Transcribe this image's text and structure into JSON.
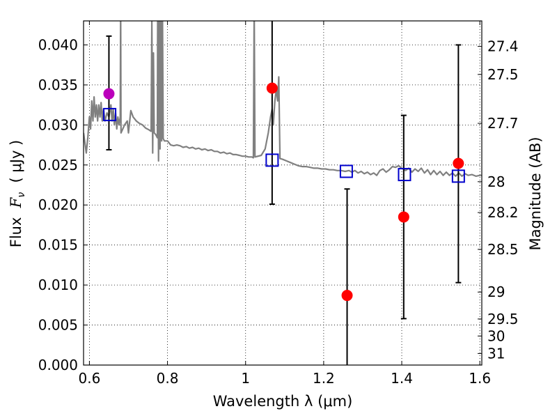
{
  "chart_data": {
    "type": "scatter",
    "xlabel": "Wavelength  λ (μm)",
    "ylabel_parts": [
      "Flux  ",
      "F",
      "ν",
      "  ( μJy )"
    ],
    "y2label": "Magnitude (AB)",
    "xlim": [
      0.585,
      1.605
    ],
    "ylim": [
      0.0,
      0.043
    ],
    "grid": true,
    "x_ticks": [
      {
        "value": 0.6,
        "label": "0.6"
      },
      {
        "value": 0.8,
        "label": "0.8"
      },
      {
        "value": 1.0,
        "label": "1"
      },
      {
        "value": 1.2,
        "label": "1.2"
      },
      {
        "value": 1.4,
        "label": "1.4"
      },
      {
        "value": 1.6,
        "label": "1.6"
      }
    ],
    "y_ticks": [
      {
        "value": 0.0,
        "label": "0.000"
      },
      {
        "value": 0.005,
        "label": "0.005"
      },
      {
        "value": 0.01,
        "label": "0.010"
      },
      {
        "value": 0.015,
        "label": "0.015"
      },
      {
        "value": 0.02,
        "label": "0.020"
      },
      {
        "value": 0.025,
        "label": "0.025"
      },
      {
        "value": 0.03,
        "label": "0.030"
      },
      {
        "value": 0.035,
        "label": "0.035"
      },
      {
        "value": 0.04,
        "label": "0.040"
      }
    ],
    "y2_ticks": [
      {
        "mag": 27.4,
        "label": "27.4"
      },
      {
        "mag": 27.5,
        "label": "27.5"
      },
      {
        "mag": 27.7,
        "label": "27.7"
      },
      {
        "mag": 28.0,
        "label": "28"
      },
      {
        "mag": 28.2,
        "label": "28.2"
      },
      {
        "mag": 28.5,
        "label": "28.5"
      },
      {
        "mag": 29.0,
        "label": "29"
      },
      {
        "mag": 29.5,
        "label": "29.5"
      },
      {
        "mag": 30.0,
        "label": "30"
      },
      {
        "mag": 31.0,
        "label": "31"
      }
    ],
    "model_sed": {
      "color": "#808080",
      "points": [
        [
          0.585,
          0.029
        ],
        [
          0.592,
          0.0265
        ],
        [
          0.596,
          0.0285
        ],
        [
          0.6,
          0.031
        ],
        [
          0.603,
          0.0295
        ],
        [
          0.606,
          0.033
        ],
        [
          0.609,
          0.0305
        ],
        [
          0.612,
          0.0335
        ],
        [
          0.615,
          0.031
        ],
        [
          0.618,
          0.0325
        ],
        [
          0.621,
          0.0305
        ],
        [
          0.624,
          0.0325
        ],
        [
          0.627,
          0.031
        ],
        [
          0.63,
          0.0328
        ],
        [
          0.633,
          0.0305
        ],
        [
          0.636,
          0.032
        ],
        [
          0.64,
          0.0305
        ],
        [
          0.645,
          0.0315
        ],
        [
          0.65,
          0.031
        ],
        [
          0.655,
          0.0325
        ],
        [
          0.658,
          0.0305
        ],
        [
          0.661,
          0.032
        ],
        [
          0.664,
          0.03
        ],
        [
          0.667,
          0.0315
        ],
        [
          0.67,
          0.0295
        ],
        [
          0.673,
          0.031
        ],
        [
          0.676,
          0.03
        ],
        [
          0.679,
          0.031
        ],
        [
          0.68,
          0.045
        ],
        [
          0.681,
          0.029
        ],
        [
          0.69,
          0.03
        ],
        [
          0.697,
          0.0305
        ],
        [
          0.7,
          0.029
        ],
        [
          0.706,
          0.0318
        ],
        [
          0.712,
          0.031
        ],
        [
          0.72,
          0.0305
        ],
        [
          0.728,
          0.0302
        ],
        [
          0.736,
          0.03
        ],
        [
          0.744,
          0.0296
        ],
        [
          0.752,
          0.0294
        ],
        [
          0.758,
          0.0292
        ],
        [
          0.76,
          0.043
        ],
        [
          0.762,
          0.0265
        ],
        [
          0.764,
          0.039
        ],
        [
          0.766,
          0.029
        ],
        [
          0.77,
          0.0288
        ],
        [
          0.774,
          0.0284
        ],
        [
          0.775,
          0.045
        ],
        [
          0.777,
          0.0255
        ],
        [
          0.779,
          0.045
        ],
        [
          0.781,
          0.027
        ],
        [
          0.783,
          0.045
        ],
        [
          0.785,
          0.028
        ],
        [
          0.787,
          0.045
        ],
        [
          0.789,
          0.0283
        ],
        [
          0.792,
          0.028
        ],
        [
          0.8,
          0.028
        ],
        [
          0.808,
          0.0275
        ],
        [
          0.816,
          0.0274
        ],
        [
          0.824,
          0.0275
        ],
        [
          0.832,
          0.0274
        ],
        [
          0.84,
          0.0272
        ],
        [
          0.848,
          0.0273
        ],
        [
          0.856,
          0.0271
        ],
        [
          0.864,
          0.0272
        ],
        [
          0.872,
          0.027
        ],
        [
          0.88,
          0.0271
        ],
        [
          0.888,
          0.0269
        ],
        [
          0.896,
          0.027
        ],
        [
          0.904,
          0.0268
        ],
        [
          0.912,
          0.0269
        ],
        [
          0.92,
          0.0267
        ],
        [
          0.928,
          0.0267
        ],
        [
          0.936,
          0.0265
        ],
        [
          0.944,
          0.0266
        ],
        [
          0.952,
          0.0264
        ],
        [
          0.96,
          0.0265
        ],
        [
          0.968,
          0.0263
        ],
        [
          0.976,
          0.0263
        ],
        [
          0.984,
          0.0262
        ],
        [
          0.992,
          0.0261
        ],
        [
          1.0,
          0.0261
        ],
        [
          1.008,
          0.026
        ],
        [
          1.016,
          0.026
        ],
        [
          1.02,
          0.0259
        ],
        [
          1.022,
          0.045
        ],
        [
          1.024,
          0.026
        ],
        [
          1.04,
          0.0262
        ],
        [
          1.05,
          0.027
        ],
        [
          1.058,
          0.029
        ],
        [
          1.064,
          0.031
        ],
        [
          1.068,
          0.032
        ],
        [
          1.071,
          0.03
        ],
        [
          1.075,
          0.033
        ],
        [
          1.079,
          0.0345
        ],
        [
          1.082,
          0.033
        ],
        [
          1.085,
          0.036
        ],
        [
          1.088,
          0.0258
        ],
        [
          1.095,
          0.0257
        ],
        [
          1.105,
          0.0255
        ],
        [
          1.115,
          0.0253
        ],
        [
          1.125,
          0.0251
        ],
        [
          1.135,
          0.0249
        ],
        [
          1.145,
          0.0248
        ],
        [
          1.155,
          0.0248
        ],
        [
          1.165,
          0.0247
        ],
        [
          1.175,
          0.0246
        ],
        [
          1.185,
          0.0246
        ],
        [
          1.195,
          0.0245
        ],
        [
          1.205,
          0.0245
        ],
        [
          1.215,
          0.0244
        ],
        [
          1.225,
          0.0244
        ],
        [
          1.235,
          0.0243
        ],
        [
          1.245,
          0.0243
        ],
        [
          1.255,
          0.0242
        ],
        [
          1.265,
          0.0243
        ],
        [
          1.272,
          0.0241
        ],
        [
          1.28,
          0.0243
        ],
        [
          1.288,
          0.024
        ],
        [
          1.296,
          0.0242
        ],
        [
          1.304,
          0.0239
        ],
        [
          1.312,
          0.0241
        ],
        [
          1.32,
          0.0238
        ],
        [
          1.328,
          0.024
        ],
        [
          1.336,
          0.0237
        ],
        [
          1.344,
          0.0243
        ],
        [
          1.352,
          0.0245
        ],
        [
          1.36,
          0.0241
        ],
        [
          1.368,
          0.0244
        ],
        [
          1.376,
          0.0248
        ],
        [
          1.384,
          0.0247
        ],
        [
          1.392,
          0.0249
        ],
        [
          1.4,
          0.0246
        ],
        [
          1.41,
          0.0243
        ],
        [
          1.418,
          0.0246
        ],
        [
          1.426,
          0.0241
        ],
        [
          1.434,
          0.0245
        ],
        [
          1.442,
          0.0242
        ],
        [
          1.45,
          0.0246
        ],
        [
          1.458,
          0.024
        ],
        [
          1.466,
          0.0244
        ],
        [
          1.474,
          0.0238
        ],
        [
          1.482,
          0.0243
        ],
        [
          1.49,
          0.0238
        ],
        [
          1.498,
          0.0242
        ],
        [
          1.506,
          0.0237
        ],
        [
          1.514,
          0.0241
        ],
        [
          1.522,
          0.0237
        ],
        [
          1.53,
          0.024
        ],
        [
          1.538,
          0.0236
        ],
        [
          1.546,
          0.024
        ],
        [
          1.554,
          0.0236
        ],
        [
          1.562,
          0.0239
        ],
        [
          1.57,
          0.0237
        ],
        [
          1.58,
          0.0238
        ],
        [
          1.59,
          0.0236
        ],
        [
          1.6,
          0.0237
        ],
        [
          1.605,
          0.0237
        ]
      ]
    },
    "model_points": {
      "marker": "square",
      "color": "#0000cc",
      "points": [
        {
          "x": 0.652,
          "y": 0.0313
        },
        {
          "x": 1.068,
          "y": 0.0256
        },
        {
          "x": 1.258,
          "y": 0.0242
        },
        {
          "x": 1.407,
          "y": 0.0238
        },
        {
          "x": 1.545,
          "y": 0.0236
        }
      ]
    },
    "observations": [
      {
        "x": 0.65,
        "y": 0.0339,
        "ylow": 0.0269,
        "yhigh": 0.0411,
        "color": "#bb00bb"
      },
      {
        "x": 1.068,
        "y": 0.0346,
        "ylow": 0.0201,
        "yhigh": 0.045,
        "color": "#ff0000"
      },
      {
        "x": 1.26,
        "y": 0.0087,
        "ylow": 0.0,
        "yhigh": 0.022,
        "color": "#ff0000"
      },
      {
        "x": 1.405,
        "y": 0.0185,
        "ylow": 0.0058,
        "yhigh": 0.0312,
        "color": "#ff0000"
      },
      {
        "x": 1.545,
        "y": 0.0252,
        "ylow": 0.0103,
        "yhigh": 0.04,
        "color": "#ff0000"
      }
    ]
  }
}
